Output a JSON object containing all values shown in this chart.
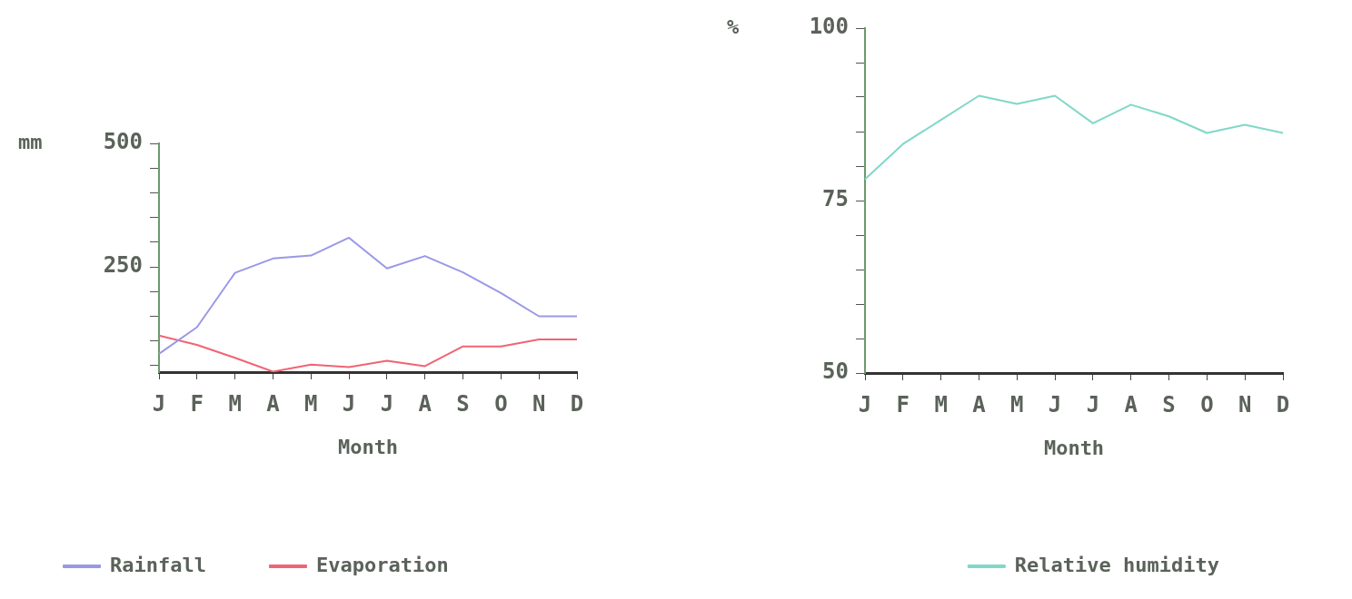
{
  "chart_data": [
    {
      "type": "line",
      "xlabel": "Month",
      "ylabel": "mm",
      "categories": [
        "J",
        "F",
        "M",
        "A",
        "M",
        "J",
        "J",
        "A",
        "S",
        "O",
        "N",
        "D"
      ],
      "series": [
        {
          "name": "Rainfall",
          "color": "#9a98e6",
          "values": [
            74,
            128,
            238,
            267,
            273,
            309,
            247,
            272,
            239,
            197,
            150,
            150
          ]
        },
        {
          "name": "Evaporation",
          "color": "#f06474",
          "values": [
            111,
            92,
            66,
            38,
            52,
            47,
            60,
            49,
            89,
            89,
            103,
            103
          ]
        }
      ],
      "ylim": [
        37,
        500
      ],
      "yticks": [
        {
          "value": 50,
          "label": null
        },
        {
          "value": 100,
          "label": null
        },
        {
          "value": 150,
          "label": null
        },
        {
          "value": 200,
          "label": null
        },
        250,
        {
          "value": 300,
          "label": null
        },
        {
          "value": 350,
          "label": null
        },
        {
          "value": 400,
          "label": null
        },
        {
          "value": 450,
          "label": null
        },
        500
      ],
      "grid": false,
      "legend": "bottom",
      "marker": "none",
      "line_style": "solid"
    },
    {
      "type": "line",
      "xlabel": "Month",
      "ylabel": "%",
      "categories": [
        "J",
        "F",
        "M",
        "A",
        "M",
        "J",
        "J",
        "A",
        "S",
        "O",
        "N",
        "D"
      ],
      "series": [
        {
          "name": "Relative humidity",
          "color": "#80d8c8",
          "values": [
            78.1,
            83.2,
            86.7,
            90.2,
            89.0,
            90.2,
            86.2,
            88.9,
            87.2,
            84.8,
            86.0,
            84.8
          ]
        }
      ],
      "ylim": [
        50,
        100
      ],
      "yticks": [
        50,
        {
          "value": 55,
          "label": null
        },
        {
          "value": 60,
          "label": null
        },
        {
          "value": 65,
          "label": null
        },
        {
          "value": 70,
          "label": null
        },
        75,
        {
          "value": 80,
          "label": null
        },
        {
          "value": 85,
          "label": null
        },
        {
          "value": 90,
          "label": null
        },
        {
          "value": 95,
          "label": null
        },
        100
      ],
      "grid": false,
      "legend": "bottom",
      "marker": "none",
      "line_style": "solid"
    }
  ]
}
